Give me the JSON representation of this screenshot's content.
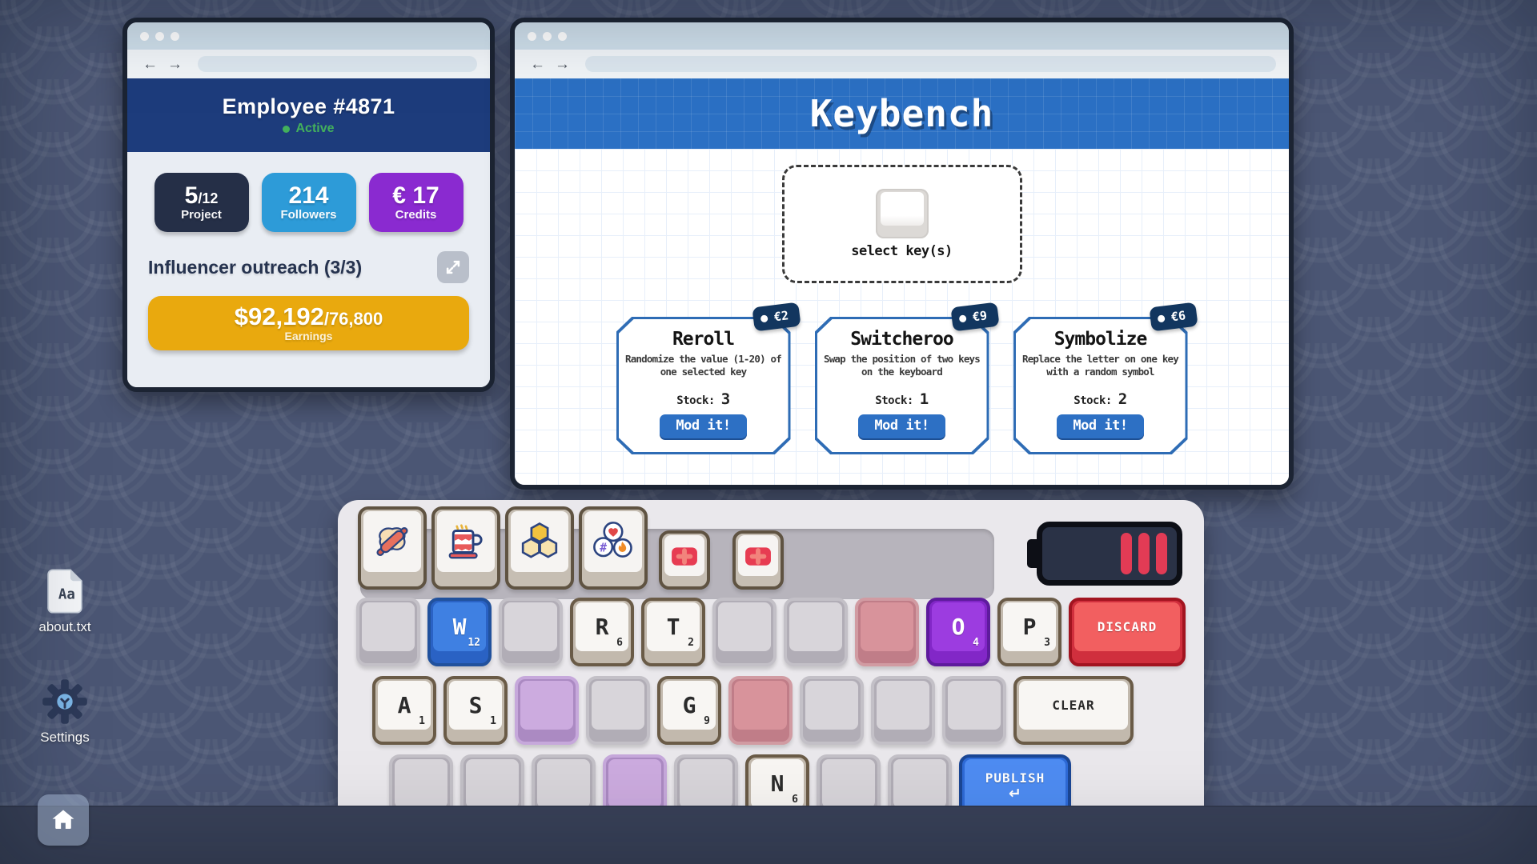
{
  "employee_window": {
    "nav": {
      "back": "←",
      "forward": "→"
    },
    "title": "Employee #4871",
    "status": {
      "label": "Active",
      "color": "#43b05c"
    },
    "stats": [
      {
        "value": "5",
        "suffix": "/12",
        "label": "Project",
        "bg": "#252f47"
      },
      {
        "value": "214",
        "suffix": "",
        "label": "Followers",
        "bg": "#2d9bd8"
      },
      {
        "value": "€ 17",
        "suffix": "",
        "label": "Credits",
        "bg": "#8a2ad0"
      }
    ],
    "task": {
      "label": "Influencer outreach (3/3)",
      "expand_icon": "expand-icon"
    },
    "earnings": {
      "current": "$92,192",
      "target": "/76,800",
      "label": "Earnings",
      "bg": "#e9a90e"
    }
  },
  "keybench_window": {
    "nav": {
      "back": "←",
      "forward": "→"
    },
    "title": "Keybench",
    "select_prompt": "select key(s)",
    "select_icon": "keycap-icon",
    "cards": [
      {
        "name": "Reroll",
        "description": "Randomize the value (1-20) of one selected key",
        "stock_label": "Stock:",
        "stock": "3",
        "price": "€2",
        "button": "Mod it!"
      },
      {
        "name": "Switcheroo",
        "description": "Swap the position of two keys on the keyboard",
        "stock_label": "Stock:",
        "stock": "1",
        "price": "€9",
        "button": "Mod it!"
      },
      {
        "name": "Symbolize",
        "description": "Replace the letter on one key with a random symbol",
        "stock_label": "Stock:",
        "stock": "2",
        "price": "€6",
        "button": "Mod it!"
      }
    ]
  },
  "keyboard": {
    "special_keys": [
      {
        "icon": "rolling-pin-icon"
      },
      {
        "icon": "mug-icon"
      },
      {
        "icon": "honeycomb-icon"
      },
      {
        "icon": "social-bubbles-icon"
      },
      {
        "icon": "plus-icon"
      },
      {
        "icon": "plus-icon"
      }
    ],
    "battery": {
      "icon": "battery-icon",
      "bars": 3,
      "bar_color": "#e23b55"
    },
    "rows": [
      [
        {
          "type": "blank"
        },
        {
          "type": "letter",
          "letter": "W",
          "value": "12",
          "style": "blue"
        },
        {
          "type": "blank"
        },
        {
          "type": "letter",
          "letter": "R",
          "value": "6"
        },
        {
          "type": "letter",
          "letter": "T",
          "value": "2"
        },
        {
          "type": "blank"
        },
        {
          "type": "blank"
        },
        {
          "type": "blank",
          "style": "pink"
        },
        {
          "type": "letter",
          "letter": "O",
          "value": "4",
          "style": "purple"
        },
        {
          "type": "letter",
          "letter": "P",
          "value": "3"
        },
        {
          "type": "action",
          "label": "DISCARD",
          "style": "red"
        }
      ],
      [
        {
          "type": "letter",
          "letter": "A",
          "value": "1"
        },
        {
          "type": "letter",
          "letter": "S",
          "value": "1"
        },
        {
          "type": "blank",
          "style": "lavender"
        },
        {
          "type": "blank"
        },
        {
          "type": "letter",
          "letter": "G",
          "value": "9"
        },
        {
          "type": "blank",
          "style": "pink"
        },
        {
          "type": "blank"
        },
        {
          "type": "blank"
        },
        {
          "type": "blank"
        },
        {
          "type": "action",
          "label": "CLEAR",
          "style": "clear"
        }
      ],
      [
        {
          "type": "blank"
        },
        {
          "type": "blank"
        },
        {
          "type": "blank"
        },
        {
          "type": "blank",
          "style": "lavender"
        },
        {
          "type": "blank"
        },
        {
          "type": "letter",
          "letter": "N",
          "value": "6"
        },
        {
          "type": "blank"
        },
        {
          "type": "blank"
        },
        {
          "type": "action",
          "label": "PUBLISH",
          "sublabel": "↵",
          "style": "publish"
        }
      ]
    ]
  },
  "desktop": {
    "icons": [
      {
        "label": "about.txt",
        "icon": "text-file-icon",
        "file_text": "Aa"
      },
      {
        "label": "Settings",
        "icon": "gear-icon"
      }
    ],
    "home_button": {
      "icon": "home-icon"
    }
  }
}
